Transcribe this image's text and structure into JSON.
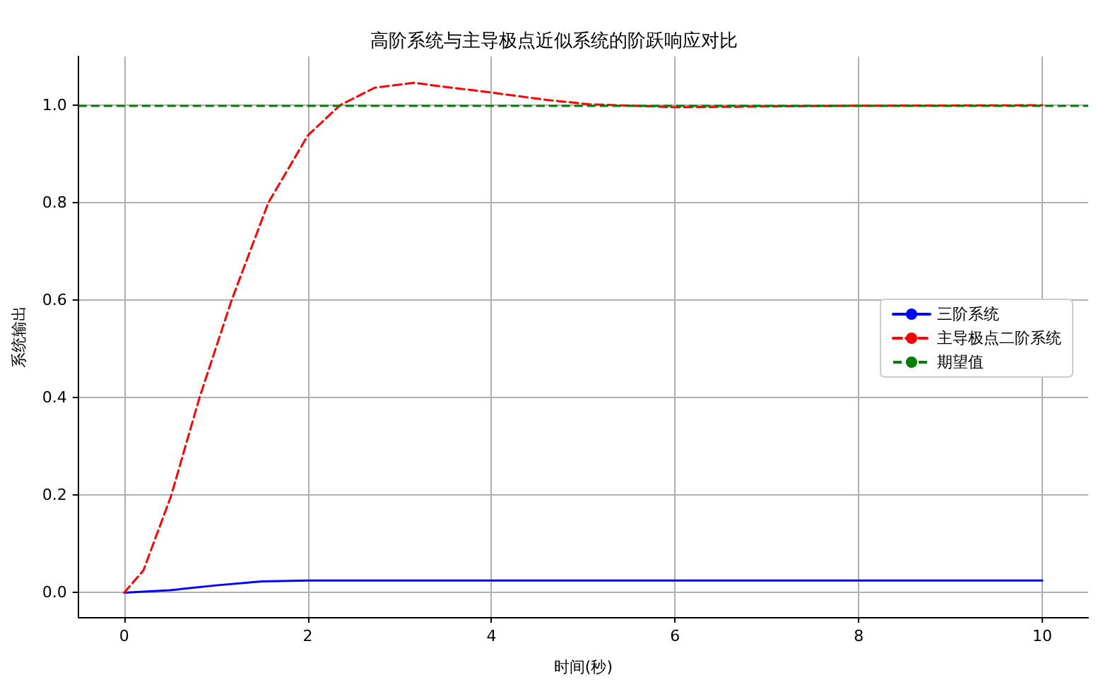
{
  "chart_data": {
    "type": "line",
    "title": "高阶系统与主导极点近似系统的阶跃响应对比",
    "xlabel": "时间(秒)",
    "ylabel": "系统输出",
    "series": [
      {
        "name": "三阶系统",
        "color": "#0000ff",
        "line_style": "solid",
        "x": [
          0,
          0.5,
          1,
          1.5,
          2,
          3,
          4,
          6,
          8,
          10
        ],
        "values": [
          0,
          0.005,
          0.015,
          0.023,
          0.025,
          0.025,
          0.025,
          0.025,
          0.025,
          0.025
        ]
      },
      {
        "name": "主导极点二阶系统",
        "color": "#ff0000",
        "line_style": "dashed",
        "x": [
          0,
          0.21,
          0.51,
          0.82,
          1.17,
          1.57,
          2.0,
          2.35,
          2.73,
          3.16,
          3.4,
          4.0,
          4.6,
          5.06,
          6.0,
          8.0,
          10.0
        ],
        "values": [
          0,
          0.046,
          0.198,
          0.4,
          0.6,
          0.8,
          0.938,
          1.0,
          1.036,
          1.046,
          1.04,
          1.026,
          1.011,
          1.002,
          0.996,
          0.999,
          1.0
        ]
      }
    ],
    "ref_lines": [
      {
        "axis": "y",
        "value": 1.0,
        "label": "期望值",
        "color": "#008000",
        "line_style": "dashed"
      }
    ],
    "xlim": [
      -0.5,
      10.5
    ],
    "xticks": [
      0,
      2,
      4,
      6,
      8,
      10
    ],
    "ylim": [
      -0.05,
      1.1
    ],
    "yticks": [
      {
        "value": 0,
        "label": "0.0"
      },
      {
        "value": 0.2,
        "label": "0.2"
      },
      {
        "value": 0.4,
        "label": "0.4"
      },
      {
        "value": 0.6,
        "label": "0.6"
      },
      {
        "value": 0.8,
        "label": "0.8"
      },
      {
        "value": 1.0,
        "label": "1.0"
      }
    ],
    "grid": true,
    "legend": "right",
    "marker": "none"
  }
}
